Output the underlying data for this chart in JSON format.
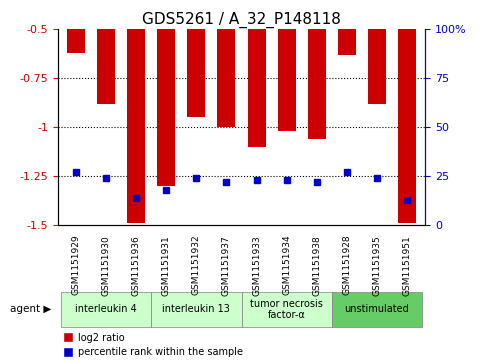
{
  "title": "GDS5261 / A_32_P148118",
  "samples": [
    "GSM1151929",
    "GSM1151930",
    "GSM1151936",
    "GSM1151931",
    "GSM1151932",
    "GSM1151937",
    "GSM1151933",
    "GSM1151934",
    "GSM1151938",
    "GSM1151928",
    "GSM1151935",
    "GSM1151951"
  ],
  "log2_ratio": [
    -0.62,
    -0.88,
    -1.49,
    -1.3,
    -0.95,
    -1.0,
    -1.1,
    -1.02,
    -1.06,
    -0.63,
    -0.88,
    -1.49
  ],
  "percentile_rank": [
    27,
    24,
    14,
    18,
    24,
    22,
    23,
    23,
    22,
    27,
    24,
    13
  ],
  "agents": [
    {
      "label": "interleukin 4",
      "start": 0,
      "end": 3,
      "color": "#ccffcc"
    },
    {
      "label": "interleukin 13",
      "start": 3,
      "end": 6,
      "color": "#ccffcc"
    },
    {
      "label": "tumor necrosis\nfactor-α",
      "start": 6,
      "end": 9,
      "color": "#ccffcc"
    },
    {
      "label": "unstimulated",
      "start": 9,
      "end": 12,
      "color": "#66cc66"
    }
  ],
  "ylim_left": [
    -1.5,
    -0.5
  ],
  "ylim_right": [
    0,
    100
  ],
  "bar_color": "#cc0000",
  "dot_color": "#0000cc",
  "background_color": "#ffffff",
  "grid_color": "#000000",
  "ylabel_left_color": "#cc0000",
  "ylabel_right_color": "#0000cc",
  "legend_items": [
    {
      "label": "log2 ratio",
      "color": "#cc0000",
      "marker": "s"
    },
    {
      "label": "percentile rank within the sample",
      "color": "#0000cc",
      "marker": "s"
    }
  ]
}
